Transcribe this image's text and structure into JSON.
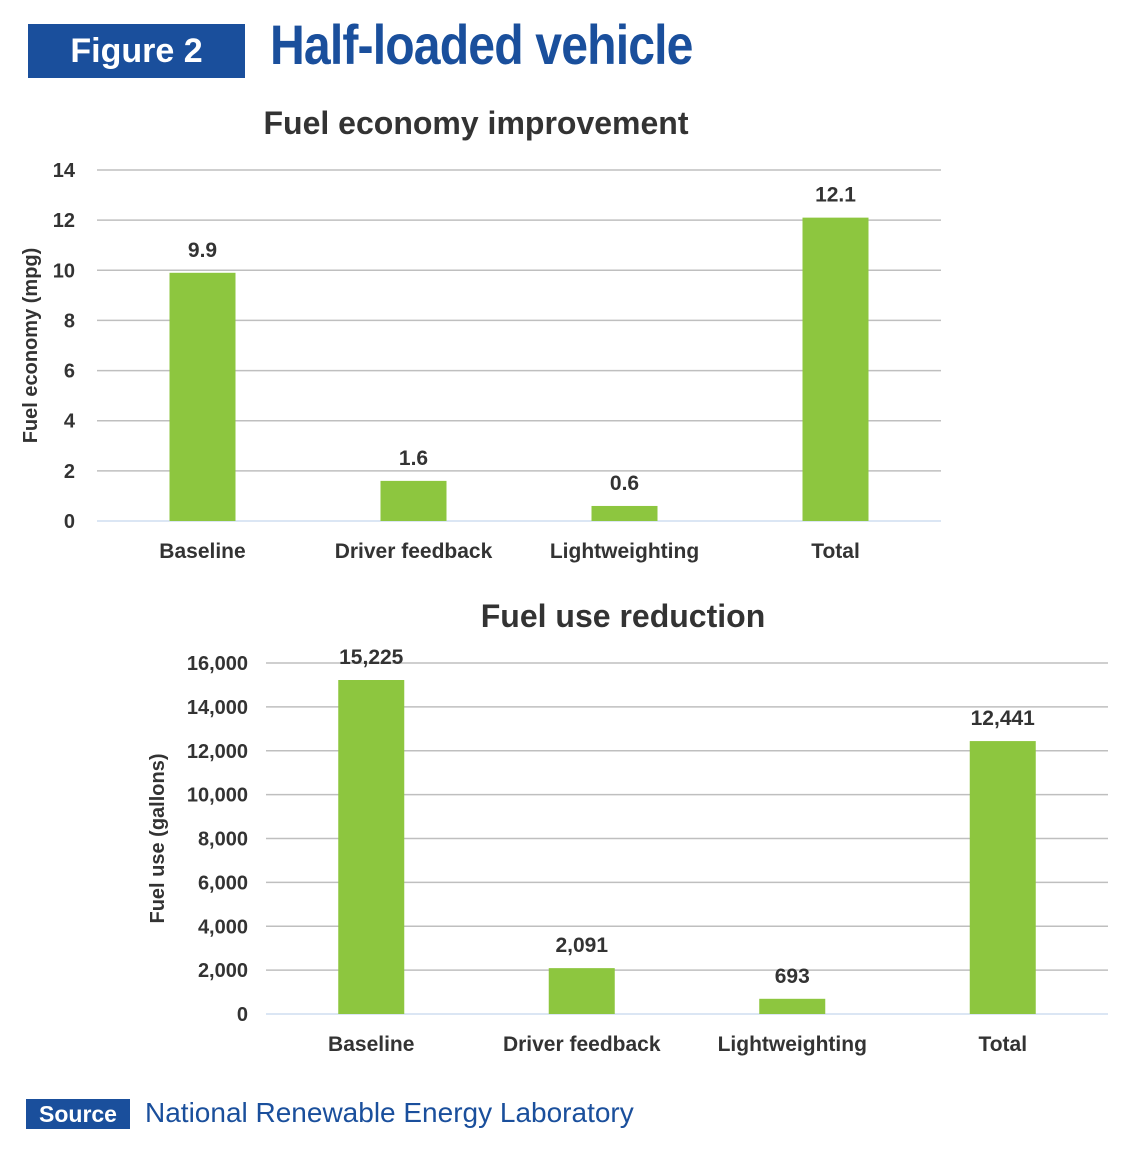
{
  "header": {
    "badge": "Figure 2",
    "title": "Half-loaded vehicle"
  },
  "footer": {
    "source_label": "Source",
    "source_text": "National Renewable Energy Laboratory"
  },
  "colors": {
    "brand_blue": "#1a4f9c",
    "bar_green": "#8dc63f",
    "grid": "#bfbfbf",
    "baseline": "#dbe6f4",
    "text_dark": "#333333"
  },
  "chart_data": [
    {
      "type": "bar",
      "title": "Fuel economy improvement",
      "ylabel": "Fuel economy (mpg)",
      "xlabel": "",
      "categories": [
        "Baseline",
        "Driver feedback",
        "Lightweighting",
        "Total"
      ],
      "values": [
        9.9,
        1.6,
        0.6,
        12.1
      ],
      "value_labels": [
        "9.9",
        "1.6",
        "0.6",
        "12.1"
      ],
      "ylim": [
        0,
        14
      ],
      "yticks": [
        0,
        2,
        4,
        6,
        8,
        10,
        12,
        14
      ],
      "ytick_labels": [
        "0",
        "2",
        "4",
        "6",
        "8",
        "10",
        "12",
        "14"
      ],
      "grid": true,
      "legend": "none"
    },
    {
      "type": "bar",
      "title": "Fuel use reduction",
      "ylabel": "Fuel use (gallons)",
      "xlabel": "",
      "categories": [
        "Baseline",
        "Driver feedback",
        "Lightweighting",
        "Total"
      ],
      "values": [
        15225,
        2091,
        693,
        12441
      ],
      "value_labels": [
        "15,225",
        "2,091",
        "693",
        "12,441"
      ],
      "ylim": [
        0,
        16000
      ],
      "yticks": [
        0,
        2000,
        4000,
        6000,
        8000,
        10000,
        12000,
        14000,
        16000
      ],
      "ytick_labels": [
        "0",
        "2,000",
        "4,000",
        "6,000",
        "8,000",
        "10,000",
        "12,000",
        "14,000",
        "16,000"
      ],
      "grid": true,
      "legend": "none"
    }
  ]
}
